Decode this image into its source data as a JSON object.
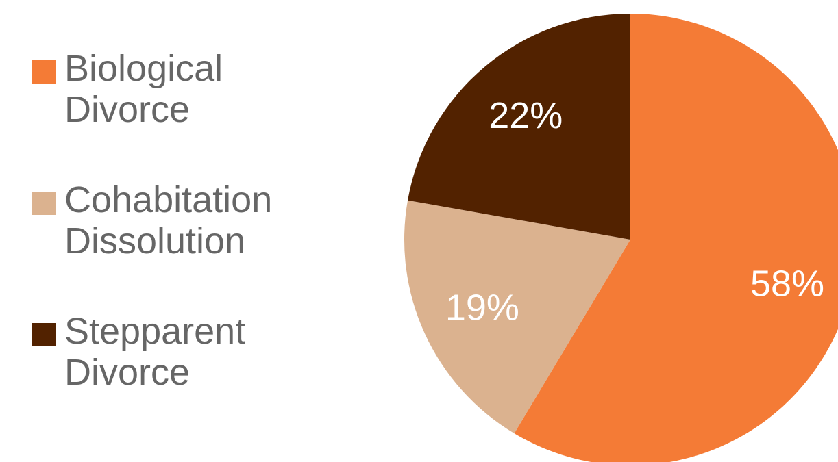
{
  "chart_data": {
    "type": "pie",
    "categories": [
      "Biological Divorce",
      "Cohabitation Dissolution",
      "Stepparent Divorce"
    ],
    "values": [
      58,
      19,
      22
    ],
    "value_labels": [
      "58%",
      "19%",
      "22%"
    ],
    "colors": [
      "#F47B36",
      "#DBB28F",
      "#522200"
    ],
    "legend": {
      "placement": "left",
      "entries": [
        {
          "line1": "Biological",
          "line2": "Divorce"
        },
        {
          "line1": "Cohabitation",
          "line2": "Dissolution"
        },
        {
          "line1": "Stepparent",
          "line2": "Divorce"
        }
      ]
    },
    "start_angle_deg": 0,
    "direction": "clockwise"
  }
}
